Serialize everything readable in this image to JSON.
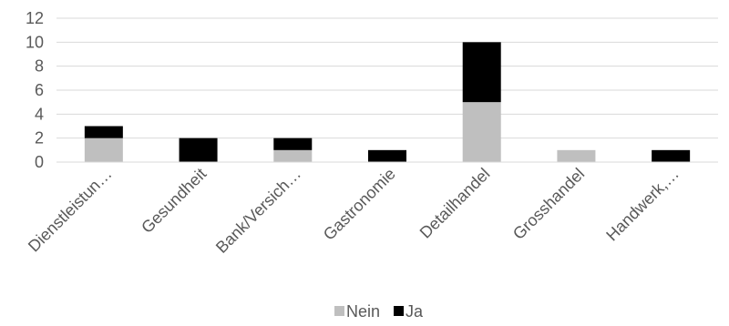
{
  "chart_data": {
    "type": "bar",
    "stacked": true,
    "categories": [
      "Dienstleistun…",
      "Gesundheit",
      "Bank/Versich…",
      "Gastronomie",
      "Detailhandel",
      "Grosshandel",
      "Handwerk,…"
    ],
    "series": [
      {
        "name": "Nein",
        "values": [
          2,
          0,
          1,
          0,
          5,
          1,
          0
        ],
        "color": "#bfbfbf"
      },
      {
        "name": "Ja",
        "values": [
          1,
          2,
          1,
          1,
          5,
          0,
          1
        ],
        "color": "#000000"
      }
    ],
    "ylim": [
      0,
      12
    ],
    "yticks": [
      0,
      2,
      4,
      6,
      8,
      10,
      12
    ],
    "grid": true,
    "legend": "bottom",
    "title": "",
    "xlabel": "",
    "ylabel": ""
  }
}
